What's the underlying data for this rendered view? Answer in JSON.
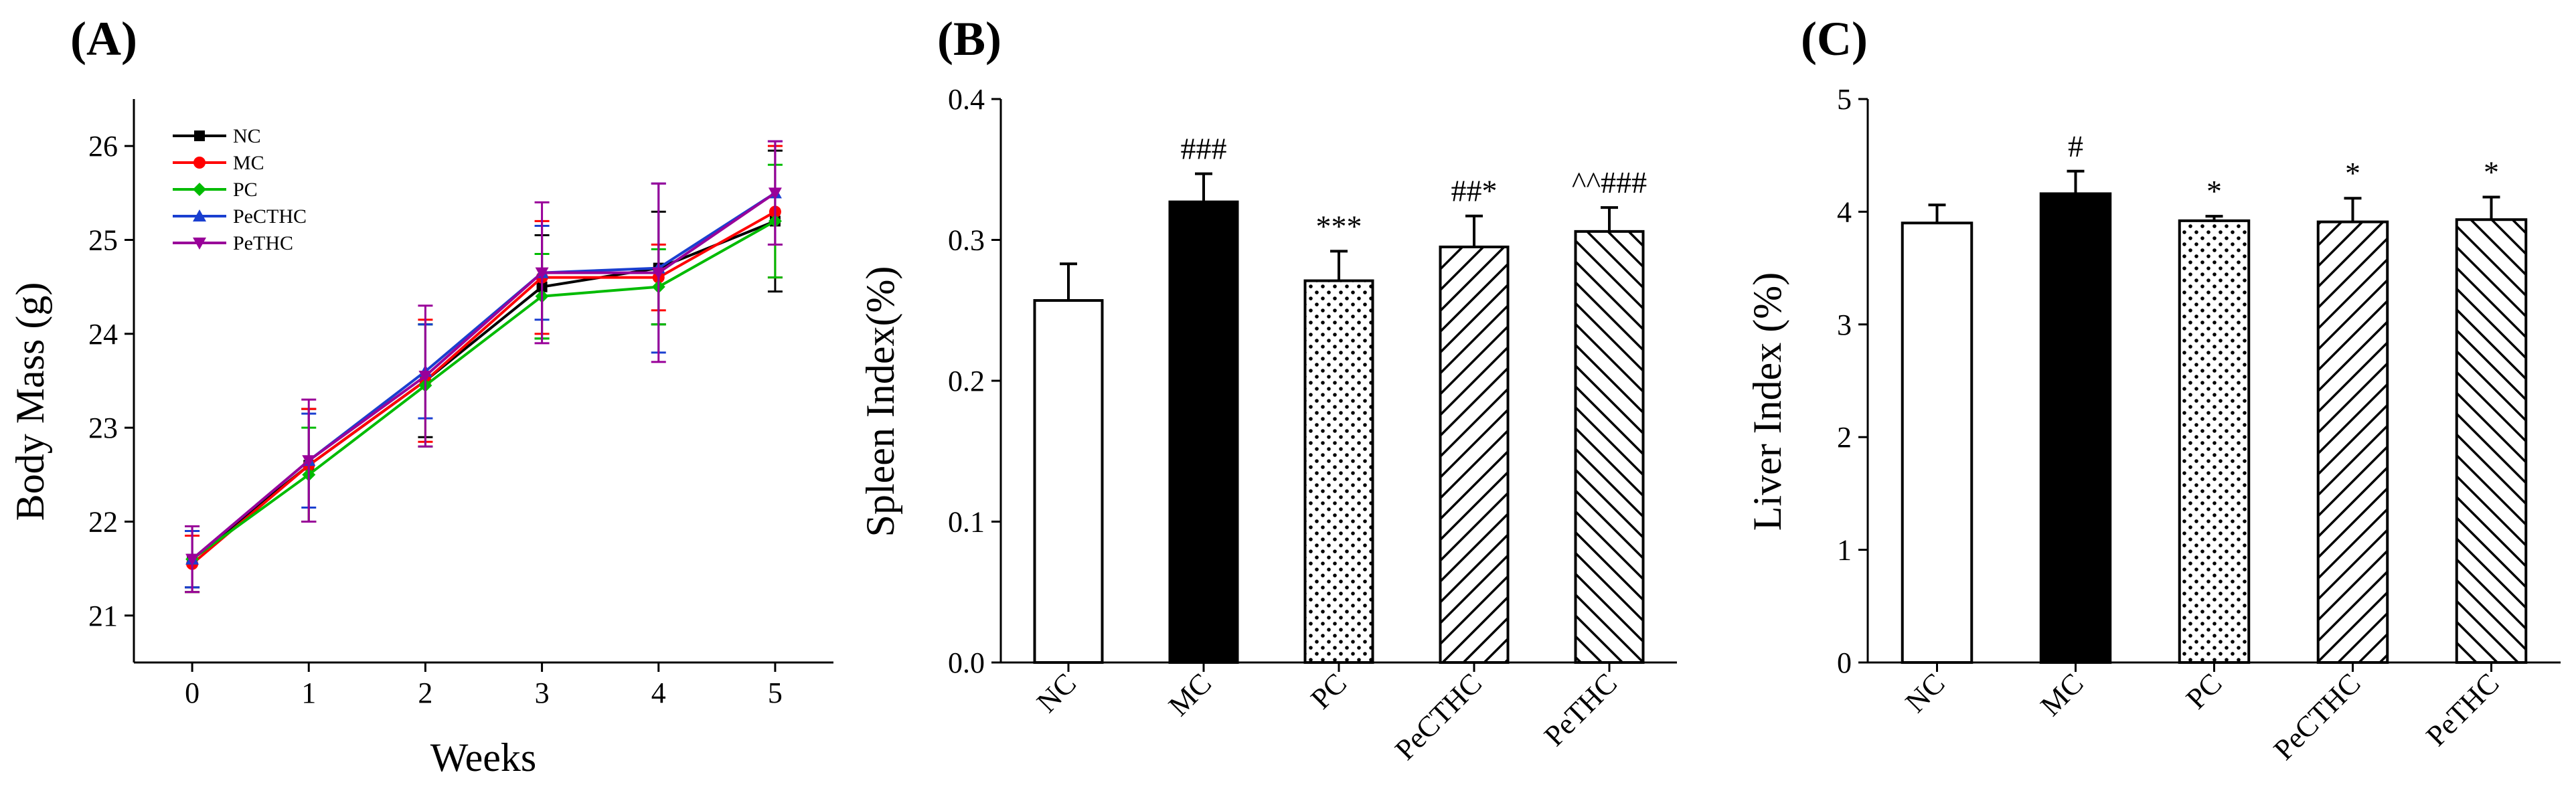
{
  "chart_data": [
    {
      "panel": "(A)",
      "type": "line",
      "xlabel": "Weeks",
      "ylabel": "Body Mass (g)",
      "x": [
        0,
        1,
        2,
        3,
        4,
        5
      ],
      "xlim": [
        -0.5,
        5.5
      ],
      "ylim": [
        20.5,
        26.5
      ],
      "yticks": [
        21,
        22,
        23,
        24,
        25,
        26
      ],
      "legend_position": "top-left",
      "series": [
        {
          "name": "NC",
          "color": "#000000",
          "marker": "square",
          "values": [
            21.6,
            22.6,
            23.5,
            24.5,
            24.7,
            25.2
          ],
          "errors": [
            0.3,
            0.6,
            0.6,
            0.55,
            0.6,
            0.75
          ]
        },
        {
          "name": "MC",
          "color": "#ff0000",
          "marker": "circle",
          "values": [
            21.55,
            22.6,
            23.5,
            24.6,
            24.6,
            25.3
          ],
          "errors": [
            0.3,
            0.6,
            0.65,
            0.6,
            0.35,
            0.7
          ]
        },
        {
          "name": "PC",
          "color": "#00bb00",
          "marker": "diamond",
          "values": [
            21.6,
            22.5,
            23.45,
            24.4,
            24.5,
            25.2
          ],
          "errors": [
            0.35,
            0.5,
            0.65,
            0.45,
            0.4,
            0.6
          ]
        },
        {
          "name": "PeCTHC",
          "color": "#1a3fd0",
          "marker": "triangle-up",
          "values": [
            21.6,
            22.65,
            23.6,
            24.65,
            24.7,
            25.5
          ],
          "errors": [
            0.3,
            0.5,
            0.5,
            0.5,
            0.9,
            0.55
          ]
        },
        {
          "name": "PeTHC",
          "color": "#990099",
          "marker": "triangle-down",
          "values": [
            21.6,
            22.65,
            23.55,
            24.65,
            24.65,
            25.5
          ],
          "errors": [
            0.35,
            0.65,
            0.75,
            0.75,
            0.95,
            0.55
          ]
        }
      ]
    },
    {
      "panel": "(B)",
      "type": "bar",
      "ylabel": "Spleen Index(%)",
      "categories": [
        "NC",
        "MC",
        "PC",
        "PeCTHC",
        "PeTHC"
      ],
      "values": [
        0.257,
        0.327,
        0.271,
        0.295,
        0.306
      ],
      "errors": [
        0.026,
        0.02,
        0.021,
        0.022,
        0.017
      ],
      "fills": [
        "white",
        "black",
        "dots",
        "hatch-right",
        "hatch-left"
      ],
      "annotations": [
        "",
        "###",
        "***",
        "##*",
        "^^###"
      ],
      "ylim": [
        0,
        0.4
      ],
      "yticks": [
        "0.0",
        "0.1",
        "0.2",
        "0.3",
        "0.4"
      ]
    },
    {
      "panel": "(C)",
      "type": "bar",
      "ylabel": "Liver Index (%)",
      "categories": [
        "NC",
        "MC",
        "PC",
        "PeCTHC",
        "PeTHC"
      ],
      "values": [
        3.9,
        4.16,
        3.92,
        3.91,
        3.93
      ],
      "errors": [
        0.16,
        0.2,
        0.04,
        0.21,
        0.2
      ],
      "fills": [
        "white",
        "black",
        "dots",
        "hatch-right",
        "hatch-left"
      ],
      "annotations": [
        "",
        "#",
        "*",
        "*",
        "*"
      ],
      "ylim": [
        0,
        5
      ],
      "yticks": [
        "0",
        "1",
        "2",
        "3",
        "4",
        "5"
      ]
    }
  ]
}
